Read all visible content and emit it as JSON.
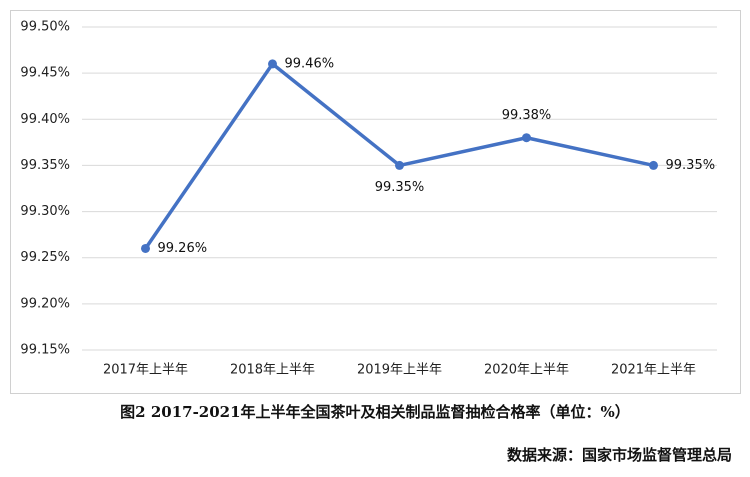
{
  "chart_data": {
    "type": "line",
    "categories": [
      "2017年上半年",
      "2018年上半年",
      "2019年上半年",
      "2020年上半年",
      "2021年上半年"
    ],
    "values": [
      99.26,
      99.46,
      99.35,
      99.38,
      99.35
    ],
    "value_labels": [
      "99.26%",
      "99.46%",
      "99.35%",
      "99.38%",
      "99.35%"
    ],
    "color": "#4472c4",
    "ylim": [
      99.15,
      99.5
    ],
    "yticks": [
      {
        "value": 99.15,
        "label": "99.15%"
      },
      {
        "value": 99.2,
        "label": "99.20%"
      },
      {
        "value": 99.25,
        "label": "99.25%"
      },
      {
        "value": 99.3,
        "label": "99.30%"
      },
      {
        "value": 99.35,
        "label": "99.35%"
      },
      {
        "value": 99.4,
        "label": "99.40%"
      },
      {
        "value": 99.45,
        "label": "99.45%"
      },
      {
        "value": 99.5,
        "label": "99.50%"
      }
    ],
    "grid": true,
    "caption": "图2   2017-2021年上半年全国茶叶及相关制品监督抽检合格率（单位：%）",
    "source": "数据来源：国家市场监督管理总局"
  }
}
